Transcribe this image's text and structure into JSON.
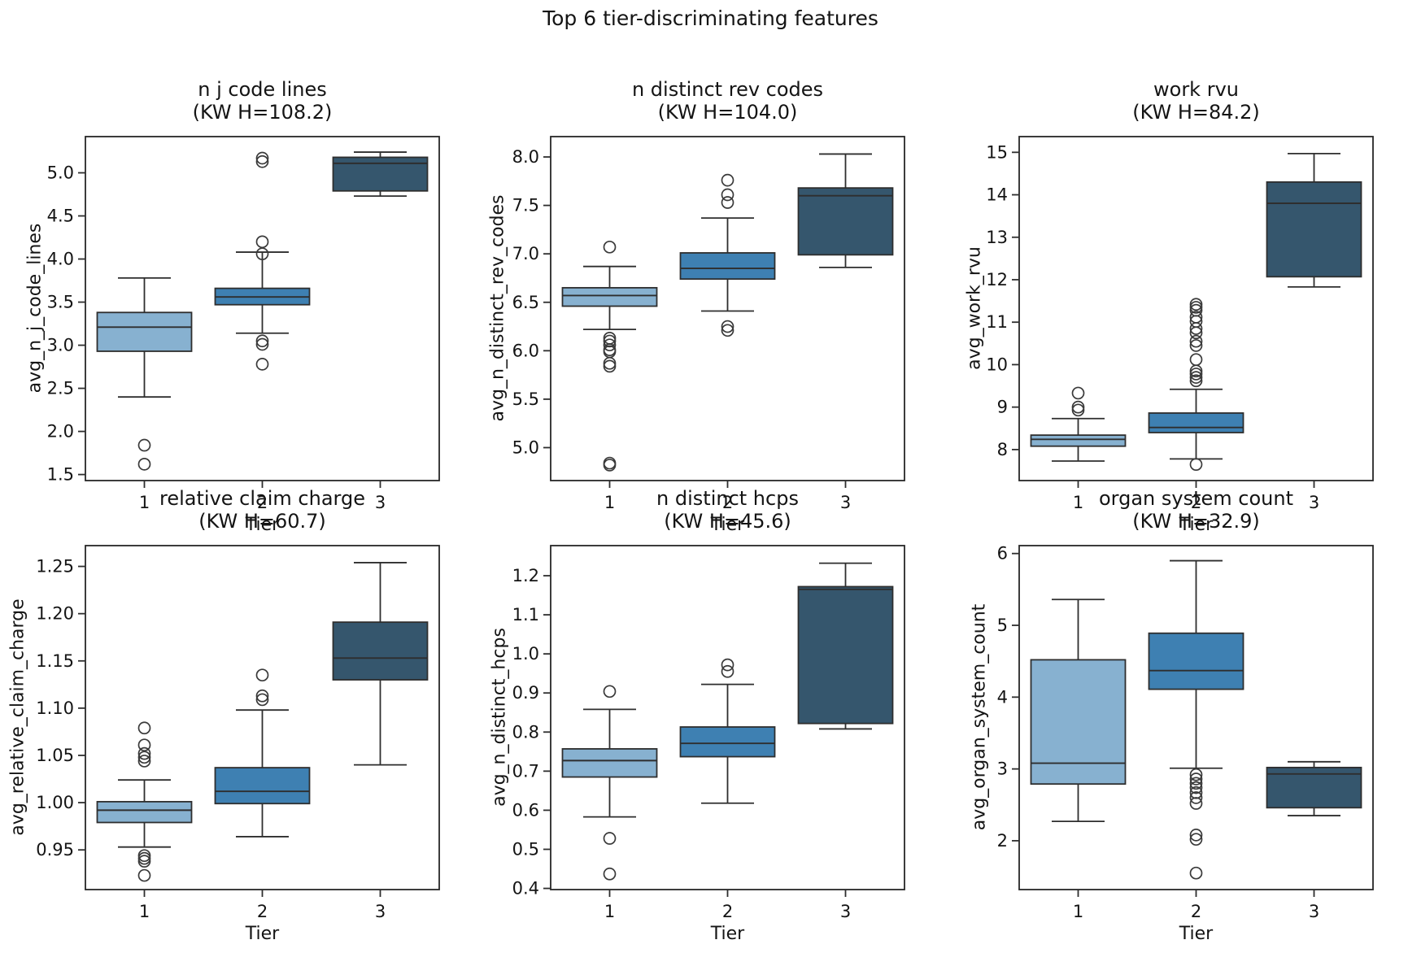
{
  "figure": {
    "title": "Top 6 tier-discriminating features",
    "xlabel": "Tier",
    "palette": [
      "#87b1d0",
      "#3e80b2",
      "#35566d"
    ],
    "line_color": "#2e2e2e",
    "background": "#ffffff"
  },
  "chart_data": [
    {
      "type": "box",
      "title": "n j code lines",
      "subtitle": "(KW H=108.2)",
      "kw_h": 108.2,
      "ylabel": "avg_n_j_code_lines",
      "xlabel": "Tier",
      "categories": [
        "1",
        "2",
        "3"
      ],
      "ylim": [
        1.43,
        5.42
      ],
      "yticks": [
        1.5,
        2.0,
        2.5,
        3.0,
        3.5,
        4.0,
        4.5,
        5.0
      ],
      "ytick_labels": [
        "1.5",
        "2.0",
        "2.5",
        "3.0",
        "3.5",
        "4.0",
        "4.5",
        "5.0"
      ],
      "grid": false,
      "boxes": [
        {
          "tier": "1",
          "whislo": 2.4,
          "q1": 2.93,
          "med": 3.21,
          "q3": 3.38,
          "whishi": 3.78,
          "outliers": [
            1.84,
            1.62
          ]
        },
        {
          "tier": "2",
          "whislo": 3.14,
          "q1": 3.47,
          "med": 3.56,
          "q3": 3.66,
          "whishi": 4.08,
          "outliers": [
            5.17,
            5.13,
            4.2,
            4.06,
            3.05,
            3.01,
            2.78
          ]
        },
        {
          "tier": "3",
          "whislo": 4.73,
          "q1": 4.79,
          "med": 5.11,
          "q3": 5.18,
          "whishi": 5.24,
          "outliers": []
        }
      ]
    },
    {
      "type": "box",
      "title": "n distinct rev codes",
      "subtitle": "(KW H=104.0)",
      "kw_h": 104.0,
      "ylabel": "avg_n_distinct_rev_codes",
      "xlabel": "Tier",
      "categories": [
        "1",
        "2",
        "3"
      ],
      "ylim": [
        4.66,
        8.21
      ],
      "yticks": [
        5.0,
        5.5,
        6.0,
        6.5,
        7.0,
        7.5,
        8.0
      ],
      "ytick_labels": [
        "5.0",
        "5.5",
        "6.0",
        "6.5",
        "7.0",
        "7.5",
        "8.0"
      ],
      "grid": false,
      "boxes": [
        {
          "tier": "1",
          "whislo": 6.22,
          "q1": 6.46,
          "med": 6.57,
          "q3": 6.65,
          "whishi": 6.87,
          "outliers": [
            7.07,
            6.13,
            6.1,
            6.06,
            6.01,
            5.99,
            5.87,
            5.84,
            4.84,
            4.82
          ]
        },
        {
          "tier": "2",
          "whislo": 6.41,
          "q1": 6.74,
          "med": 6.85,
          "q3": 7.01,
          "whishi": 7.37,
          "outliers": [
            7.76,
            7.61,
            7.53,
            6.25,
            6.21
          ]
        },
        {
          "tier": "3",
          "whislo": 6.86,
          "q1": 6.99,
          "med": 7.6,
          "q3": 7.68,
          "whishi": 8.03,
          "outliers": []
        }
      ]
    },
    {
      "type": "box",
      "title": "work rvu",
      "subtitle": "(KW H=84.2)",
      "kw_h": 84.2,
      "ylabel": "avg_work_rvu",
      "xlabel": "Tier",
      "categories": [
        "1",
        "2",
        "3"
      ],
      "ylim": [
        7.27,
        15.37
      ],
      "yticks": [
        8,
        9,
        10,
        11,
        12,
        13,
        14,
        15
      ],
      "ytick_labels": [
        "8",
        "9",
        "10",
        "11",
        "12",
        "13",
        "14",
        "15"
      ],
      "grid": false,
      "boxes": [
        {
          "tier": "1",
          "whislo": 7.73,
          "q1": 8.08,
          "med": 8.24,
          "q3": 8.34,
          "whishi": 8.73,
          "outliers": [
            9.33,
            9.0,
            8.93
          ]
        },
        {
          "tier": "2",
          "whislo": 7.78,
          "q1": 8.4,
          "med": 8.52,
          "q3": 8.86,
          "whishi": 9.42,
          "outliers": [
            11.42,
            11.35,
            11.28,
            11.12,
            11.02,
            10.85,
            10.75,
            10.55,
            10.45,
            10.12,
            9.85,
            9.78,
            9.7,
            9.62,
            7.65
          ]
        },
        {
          "tier": "3",
          "whislo": 11.83,
          "q1": 12.07,
          "med": 13.8,
          "q3": 14.3,
          "whishi": 14.97,
          "outliers": []
        }
      ]
    },
    {
      "type": "box",
      "title": "relative claim charge",
      "subtitle": "(KW H=60.7)",
      "kw_h": 60.7,
      "ylabel": "avg_relative_claim_charge",
      "xlabel": "Tier",
      "categories": [
        "1",
        "2",
        "3"
      ],
      "ylim": [
        0.908,
        1.272
      ],
      "yticks": [
        0.95,
        1.0,
        1.05,
        1.1,
        1.15,
        1.2,
        1.25
      ],
      "ytick_labels": [
        "0.95",
        "1.00",
        "1.05",
        "1.10",
        "1.15",
        "1.20",
        "1.25"
      ],
      "grid": false,
      "boxes": [
        {
          "tier": "1",
          "whislo": 0.953,
          "q1": 0.979,
          "med": 0.992,
          "q3": 1.001,
          "whishi": 1.024,
          "outliers": [
            1.079,
            1.061,
            1.052,
            1.048,
            1.044,
            0.944,
            0.941,
            0.938,
            0.923
          ]
        },
        {
          "tier": "2",
          "whislo": 0.964,
          "q1": 0.999,
          "med": 1.012,
          "q3": 1.037,
          "whishi": 1.098,
          "outliers": [
            1.135,
            1.113,
            1.109
          ]
        },
        {
          "tier": "3",
          "whislo": 1.04,
          "q1": 1.13,
          "med": 1.153,
          "q3": 1.191,
          "whishi": 1.254,
          "outliers": []
        }
      ]
    },
    {
      "type": "box",
      "title": "n distinct hcps",
      "subtitle": "(KW H=45.6)",
      "kw_h": 45.6,
      "ylabel": "avg_n_distinct_hcps",
      "xlabel": "Tier",
      "categories": [
        "1",
        "2",
        "3"
      ],
      "ylim": [
        0.397,
        1.277
      ],
      "yticks": [
        0.4,
        0.5,
        0.6,
        0.7,
        0.8,
        0.9,
        1.0,
        1.1,
        1.2
      ],
      "ytick_labels": [
        "0.4",
        "0.5",
        "0.6",
        "0.7",
        "0.8",
        "0.9",
        "1.0",
        "1.1",
        "1.2"
      ],
      "grid": false,
      "boxes": [
        {
          "tier": "1",
          "whislo": 0.583,
          "q1": 0.685,
          "med": 0.727,
          "q3": 0.757,
          "whishi": 0.858,
          "outliers": [
            0.904,
            0.528,
            0.437
          ]
        },
        {
          "tier": "2",
          "whislo": 0.618,
          "q1": 0.737,
          "med": 0.771,
          "q3": 0.813,
          "whishi": 0.922,
          "outliers": [
            0.972,
            0.955
          ]
        },
        {
          "tier": "3",
          "whislo": 0.808,
          "q1": 0.822,
          "med": 1.165,
          "q3": 1.172,
          "whishi": 1.232,
          "outliers": []
        }
      ]
    },
    {
      "type": "box",
      "title": "organ system count",
      "subtitle": "(KW H=32.9)",
      "kw_h": 32.9,
      "ylabel": "avg_organ_system_count",
      "xlabel": "Tier",
      "categories": [
        "1",
        "2",
        "3"
      ],
      "ylim": [
        1.32,
        6.11
      ],
      "yticks": [
        2,
        3,
        4,
        5,
        6
      ],
      "ytick_labels": [
        "2",
        "3",
        "4",
        "5",
        "6"
      ],
      "grid": false,
      "boxes": [
        {
          "tier": "1",
          "whislo": 2.27,
          "q1": 2.79,
          "med": 3.08,
          "q3": 4.52,
          "whishi": 5.36,
          "outliers": []
        },
        {
          "tier": "2",
          "whislo": 3.01,
          "q1": 4.11,
          "med": 4.37,
          "q3": 4.89,
          "whishi": 5.9,
          "outliers": [
            2.92,
            2.86,
            2.8,
            2.74,
            2.67,
            2.6,
            2.52,
            2.08,
            2.02,
            1.55
          ]
        },
        {
          "tier": "3",
          "whislo": 2.35,
          "q1": 2.46,
          "med": 2.93,
          "q3": 3.02,
          "whishi": 3.1,
          "outliers": []
        }
      ]
    }
  ]
}
